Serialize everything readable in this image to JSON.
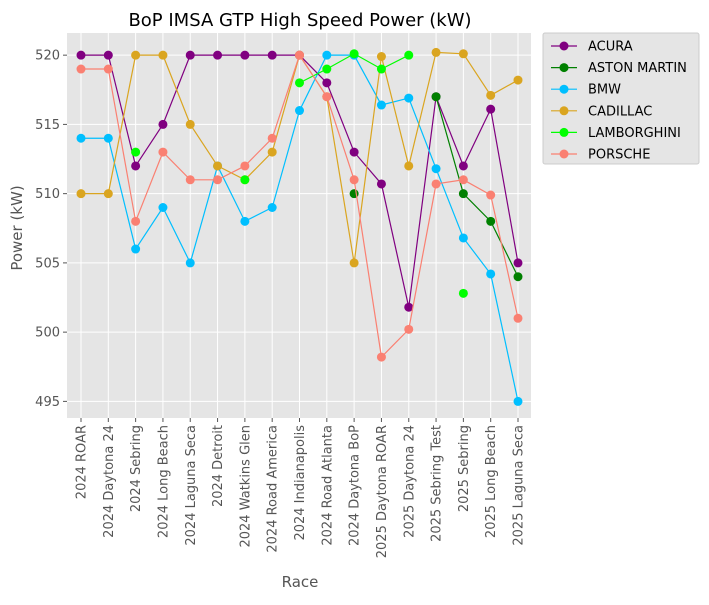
{
  "chart_data": {
    "type": "line",
    "title": "BoP IMSA GTP High Speed Power (kW)",
    "xlabel": "Race",
    "ylabel": "Power (kW)",
    "ylim": [
      493.8,
      521.6
    ],
    "yticks": [
      495,
      500,
      505,
      510,
      515,
      520
    ],
    "categories": [
      "2024 ROAR",
      "2024 Daytona 24",
      "2024 Sebring",
      "2024 Long Beach",
      "2024 Laguna Seca",
      "2024 Detroit",
      "2024 Watkins Glen",
      "2024 Road America",
      "2024 Indianapolis",
      "2024 Road Atlanta",
      "2024 Daytona BoP",
      "2025 Daytona ROAR",
      "2025 Daytona 24",
      "2025 Sebring Test",
      "2025 Sebring",
      "2025 Long Beach",
      "2025 Laguna Seca"
    ],
    "grid": true,
    "legend_position": "outside-right-top",
    "series": [
      {
        "name": "ACURA",
        "color": "#800080",
        "values": [
          520,
          520,
          512,
          515,
          520,
          520,
          520,
          520,
          520,
          518,
          513,
          510.7,
          501.8,
          517,
          512,
          516.1,
          505
        ]
      },
      {
        "name": "ASTON MARTIN",
        "color": "#008000",
        "values": [
          null,
          null,
          null,
          null,
          null,
          null,
          null,
          null,
          null,
          null,
          510,
          null,
          null,
          517,
          510,
          508,
          504
        ]
      },
      {
        "name": "BMW",
        "color": "#00bfff",
        "values": [
          514,
          514,
          506,
          509,
          505,
          512,
          508,
          509,
          516,
          520,
          520,
          516.4,
          516.9,
          511.8,
          506.8,
          504.2,
          495
        ]
      },
      {
        "name": "CADILLAC",
        "color": "#daa520",
        "values": [
          510,
          510,
          520,
          520,
          515,
          512,
          511,
          513,
          520,
          517,
          505,
          519.9,
          512,
          520.2,
          520.1,
          517.1,
          518.2
        ]
      },
      {
        "name": "LAMBORGHINI",
        "color": "#00ff00",
        "values": [
          null,
          null,
          513,
          null,
          null,
          null,
          511,
          null,
          518,
          519,
          520.1,
          519,
          520,
          null,
          502.8,
          null,
          null
        ]
      },
      {
        "name": "PORSCHE",
        "color": "#fa8072",
        "values": [
          519,
          519,
          508,
          513,
          511,
          511,
          512,
          514,
          520,
          517,
          511,
          498.2,
          500.2,
          510.7,
          511,
          509.9,
          501
        ]
      }
    ]
  }
}
